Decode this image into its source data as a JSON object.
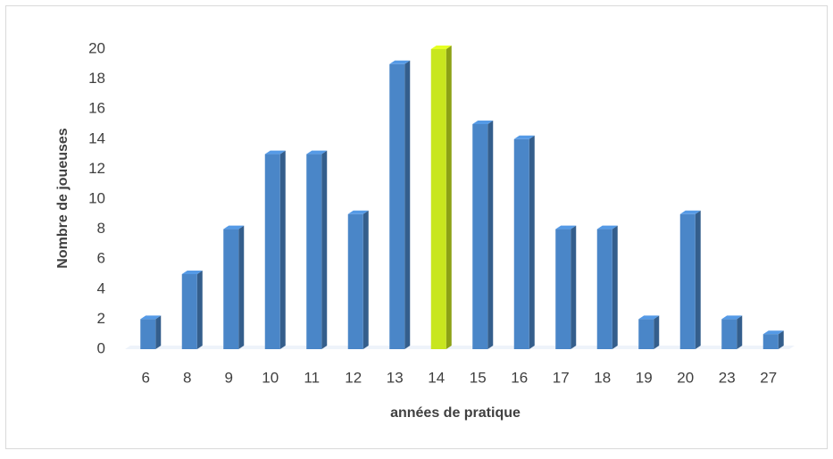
{
  "chart_data": {
    "type": "bar",
    "x_label": "années de pratique",
    "y_label": "Nombre de joueuses",
    "categories": [
      "6",
      "8",
      "9",
      "10",
      "11",
      "12",
      "13",
      "14",
      "15",
      "16",
      "17",
      "18",
      "19",
      "20",
      "23",
      "27"
    ],
    "values": [
      2,
      5,
      8,
      13,
      13,
      9,
      19,
      20,
      15,
      14,
      8,
      8,
      2,
      9,
      2,
      1
    ],
    "colors": [
      "#4a86c8",
      "#4a86c8",
      "#4a86c8",
      "#4a86c8",
      "#4a86c8",
      "#4a86c8",
      "#4a86c8",
      "#c8e61e",
      "#4a86c8",
      "#4a86c8",
      "#4a86c8",
      "#4a86c8",
      "#4a86c8",
      "#4a86c8",
      "#4a86c8",
      "#4a86c8"
    ],
    "ylim": [
      0,
      20
    ],
    "yticks": [
      0,
      2,
      4,
      6,
      8,
      10,
      12,
      14,
      16,
      18,
      20
    ],
    "grid": false
  }
}
